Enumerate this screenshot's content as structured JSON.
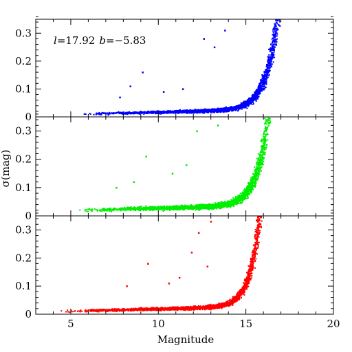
{
  "figure": {
    "xlabel": "Magnitude",
    "ylabel": "σ(mag)",
    "annotation": {
      "l_symbol": "l",
      "l_value": "=17.92",
      "b_symbol": "b",
      "b_value": "=−5.83"
    }
  },
  "chart_data": [
    {
      "type": "scatter",
      "panel": "top",
      "color": "#0000ff",
      "xlim": [
        3,
        20
      ],
      "ylim": [
        0,
        0.35
      ],
      "x_ticks": [
        5,
        10,
        15,
        20
      ],
      "y_ticks": [
        0,
        0.1,
        0.2,
        0.3
      ],
      "y_tick_labels": [
        "0",
        "0.1",
        "0.2",
        "0.3"
      ],
      "envelope": {
        "mag_range": [
          5.6,
          17.4
        ],
        "sigma_floor": 0.01,
        "sigma_knee_mag": 14.5,
        "sigma_top_mag": 16.8
      },
      "outliers": [
        [
          9.1,
          0.16
        ],
        [
          7.8,
          0.07
        ],
        [
          12.6,
          0.28
        ],
        [
          13.2,
          0.25
        ],
        [
          8.4,
          0.11
        ],
        [
          11.4,
          0.1
        ],
        [
          13.8,
          0.31
        ],
        [
          10.3,
          0.09
        ]
      ]
    },
    {
      "type": "scatter",
      "panel": "middle",
      "color": "#00ee00",
      "xlim": [
        3,
        20
      ],
      "ylim": [
        0,
        0.35
      ],
      "x_ticks": [
        5,
        10,
        15,
        20
      ],
      "y_ticks": [
        0,
        0.1,
        0.2,
        0.3
      ],
      "y_tick_labels": [
        "0",
        "0.1",
        "0.2",
        "0.3"
      ],
      "envelope": {
        "mag_range": [
          5.4,
          16.6
        ],
        "sigma_floor": 0.02,
        "sigma_knee_mag": 14.0,
        "sigma_top_mag": 16.3
      },
      "outliers": [
        [
          9.3,
          0.21
        ],
        [
          7.6,
          0.1
        ],
        [
          12.2,
          0.3
        ],
        [
          11.6,
          0.18
        ],
        [
          13.4,
          0.32
        ],
        [
          8.6,
          0.12
        ],
        [
          10.8,
          0.15
        ]
      ]
    },
    {
      "type": "scatter",
      "panel": "bottom",
      "color": "#ff0000",
      "xlim": [
        3,
        20
      ],
      "ylim": [
        0,
        0.35
      ],
      "x_ticks": [
        5,
        10,
        15,
        20
      ],
      "x_tick_labels": [
        "5",
        "10",
        "15",
        "20"
      ],
      "y_ticks": [
        0,
        0.1,
        0.2,
        0.3
      ],
      "y_tick_labels": [
        "0",
        "0.1",
        "0.2",
        "0.3"
      ],
      "envelope": {
        "mag_range": [
          4.4,
          16.1
        ],
        "sigma_floor": 0.01,
        "sigma_knee_mag": 13.8,
        "sigma_top_mag": 15.8
      },
      "outliers": [
        [
          9.4,
          0.18
        ],
        [
          8.2,
          0.1
        ],
        [
          12.3,
          0.29
        ],
        [
          11.9,
          0.22
        ],
        [
          10.6,
          0.11
        ],
        [
          13.0,
          0.33
        ],
        [
          12.8,
          0.17
        ],
        [
          11.2,
          0.13
        ]
      ]
    }
  ]
}
